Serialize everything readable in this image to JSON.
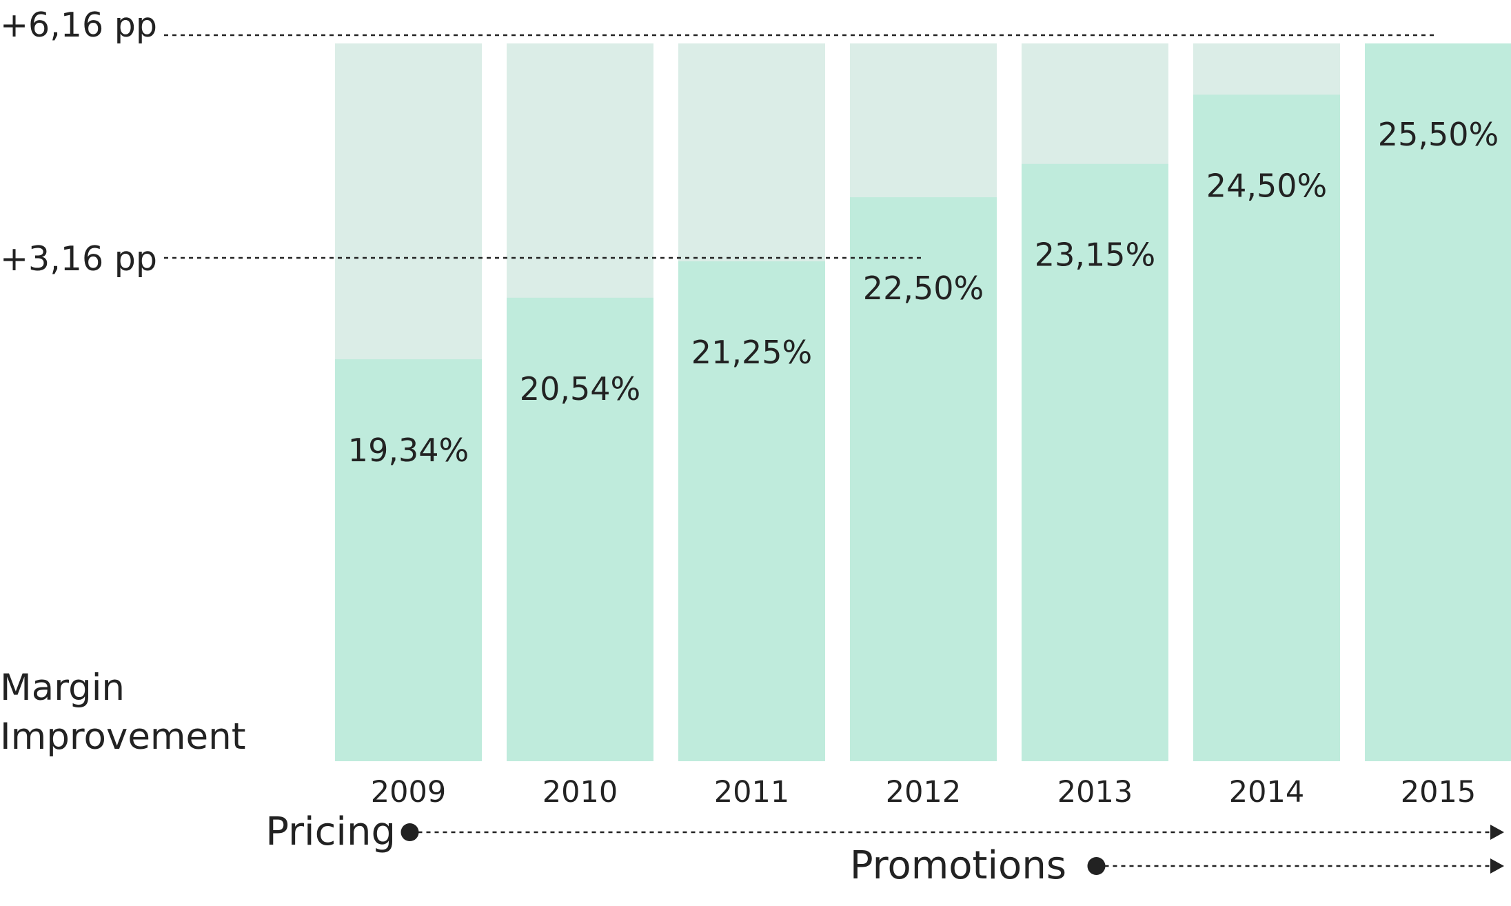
{
  "chart_data": {
    "type": "bar",
    "title": "",
    "xlabel": "",
    "ylabel": "Margin Improvement",
    "ylabel_lines": [
      "Margin",
      "Improvement"
    ],
    "categories": [
      "2009",
      "2010",
      "2011",
      "2012",
      "2013",
      "2014",
      "2015"
    ],
    "values": [
      19.34,
      20.54,
      21.25,
      22.5,
      23.15,
      24.5,
      25.5
    ],
    "value_labels": [
      "19,34%",
      "20,54%",
      "21,25%",
      "22,50%",
      "23,15%",
      "24,50%",
      "25,50%"
    ],
    "unit": "%",
    "background_max": 25.5,
    "ylim": [
      11.5,
      25.5
    ],
    "grid": false,
    "reference_lines": [
      {
        "label": "+6,16 pp",
        "value": 25.5,
        "from": "2009",
        "to": "2015"
      },
      {
        "label": "+3,16 pp",
        "value": 22.5,
        "from": "2009",
        "to": "2012"
      }
    ],
    "initiatives": [
      {
        "label": "Pricing",
        "start": "2009"
      },
      {
        "label": "Promotions",
        "start": "2013"
      }
    ],
    "colors": {
      "bar": "#bfebdc",
      "bar_background": "#dbede7",
      "text": "#222222",
      "line": "#222222"
    }
  }
}
